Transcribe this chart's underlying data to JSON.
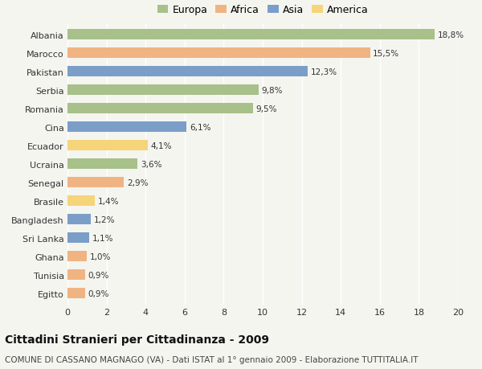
{
  "countries": [
    "Albania",
    "Marocco",
    "Pakistan",
    "Serbia",
    "Romania",
    "Cina",
    "Ecuador",
    "Ucraina",
    "Senegal",
    "Brasile",
    "Bangladesh",
    "Sri Lanka",
    "Ghana",
    "Tunisia",
    "Egitto"
  ],
  "values": [
    18.8,
    15.5,
    12.3,
    9.8,
    9.5,
    6.1,
    4.1,
    3.6,
    2.9,
    1.4,
    1.2,
    1.1,
    1.0,
    0.9,
    0.9
  ],
  "labels": [
    "18,8%",
    "15,5%",
    "12,3%",
    "9,8%",
    "9,5%",
    "6,1%",
    "4,1%",
    "3,6%",
    "2,9%",
    "1,4%",
    "1,2%",
    "1,1%",
    "1,0%",
    "0,9%",
    "0,9%"
  ],
  "continents": [
    "Europa",
    "Africa",
    "Asia",
    "Europa",
    "Europa",
    "Asia",
    "America",
    "Europa",
    "Africa",
    "America",
    "Asia",
    "Asia",
    "Africa",
    "Africa",
    "Africa"
  ],
  "colors": {
    "Europa": "#a8c08a",
    "Africa": "#f0b482",
    "Asia": "#7b9ec9",
    "America": "#f5d47a"
  },
  "legend_order": [
    "Europa",
    "Africa",
    "Asia",
    "America"
  ],
  "xlim": [
    0,
    20
  ],
  "xticks": [
    0,
    2,
    4,
    6,
    8,
    10,
    12,
    14,
    16,
    18,
    20
  ],
  "title": "Cittadini Stranieri per Cittadinanza - 2009",
  "subtitle": "COMUNE DI CASSANO MAGNAGO (VA) - Dati ISTAT al 1° gennaio 2009 - Elaborazione TUTTITALIA.IT",
  "background_color": "#f5f5f0",
  "bar_height": 0.55,
  "title_fontsize": 10,
  "subtitle_fontsize": 7.5,
  "label_fontsize": 7.5,
  "tick_fontsize": 8,
  "legend_fontsize": 9
}
